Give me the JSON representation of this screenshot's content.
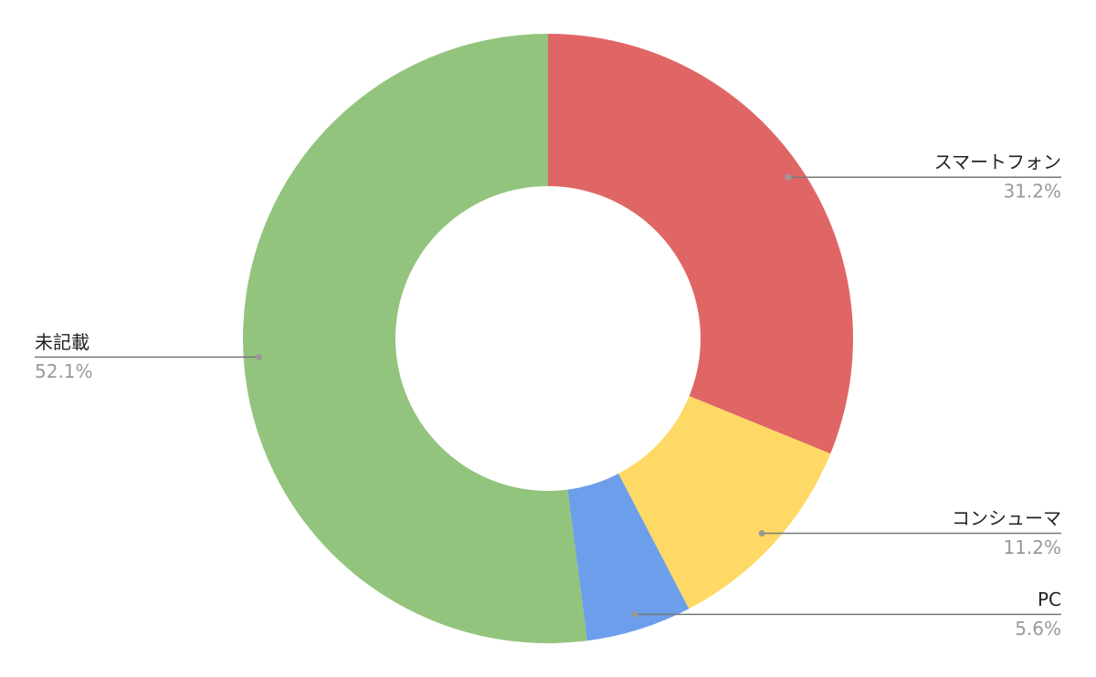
{
  "chart_data": {
    "type": "donut",
    "categories": [
      "スマートフォン",
      "コンシューマ",
      "PC",
      "未記載"
    ],
    "values": [
      31.2,
      11.2,
      5.6,
      52.1
    ],
    "value_labels": [
      "31.2%",
      "11.2%",
      "5.6%",
      "52.1%"
    ],
    "colors": [
      "#e06666",
      "#ffd966",
      "#6d9eeb",
      "#93c47d"
    ]
  }
}
